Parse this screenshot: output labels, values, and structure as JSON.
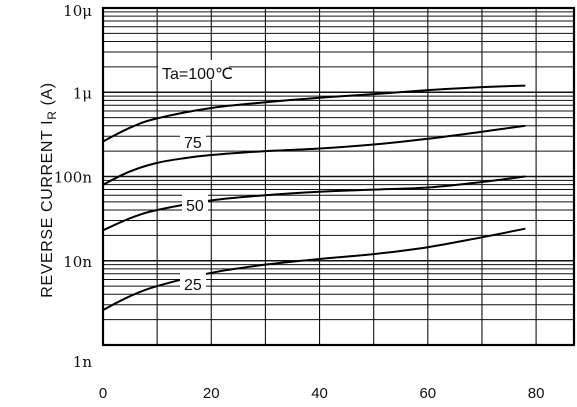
{
  "chart_data": {
    "type": "line",
    "title": "",
    "xlabel": "",
    "ylabel_main": "REVERSE CURRENT I",
    "ylabel_subscript": "R",
    "ylabel_unit": " (A)",
    "xlim": [
      0,
      87
    ],
    "ylim": [
      1e-09,
      1e-05
    ],
    "y_scale": "log",
    "grid": true,
    "x_ticks": [
      0,
      20,
      40,
      60,
      80
    ],
    "x_tick_labels": [
      "0",
      "20",
      "40",
      "60",
      "80"
    ],
    "y_ticks": [
      1e-09,
      1e-08,
      1e-07,
      1e-06,
      1e-05
    ],
    "y_tick_labels": [
      "1n",
      "10n",
      "100n",
      "1μ",
      "10μ"
    ],
    "series": [
      {
        "name": "Ta=100℃",
        "x": [
          0,
          5,
          10,
          20,
          30,
          40,
          50,
          60,
          70,
          78
        ],
        "y": [
          2.6e-07,
          3.8e-07,
          4.9e-07,
          6.5e-07,
          7.6e-07,
          8.6e-07,
          9.5e-07,
          1.06e-06,
          1.15e-06,
          1.2e-06
        ]
      },
      {
        "name": "75",
        "x": [
          0,
          5,
          10,
          15,
          20,
          30,
          40,
          50,
          60,
          70,
          78
        ],
        "y": [
          8e-08,
          1.15e-07,
          1.45e-07,
          1.65e-07,
          1.8e-07,
          2e-07,
          2.15e-07,
          2.4e-07,
          2.8e-07,
          3.4e-07,
          4e-07
        ]
      },
      {
        "name": "50",
        "x": [
          0,
          5,
          10,
          20,
          30,
          40,
          50,
          60,
          70,
          78
        ],
        "y": [
          2.3e-08,
          3.2e-08,
          4e-08,
          5.2e-08,
          6e-08,
          6.6e-08,
          7e-08,
          7.4e-08,
          8.6e-08,
          1e-07
        ]
      },
      {
        "name": "25",
        "x": [
          0,
          5,
          10,
          20,
          30,
          40,
          50,
          60,
          70,
          78
        ],
        "y": [
          2.6e-09,
          3.8e-09,
          5e-09,
          7.2e-09,
          9e-09,
          1.05e-08,
          1.2e-08,
          1.45e-08,
          1.9e-08,
          2.4e-08
        ]
      }
    ]
  }
}
